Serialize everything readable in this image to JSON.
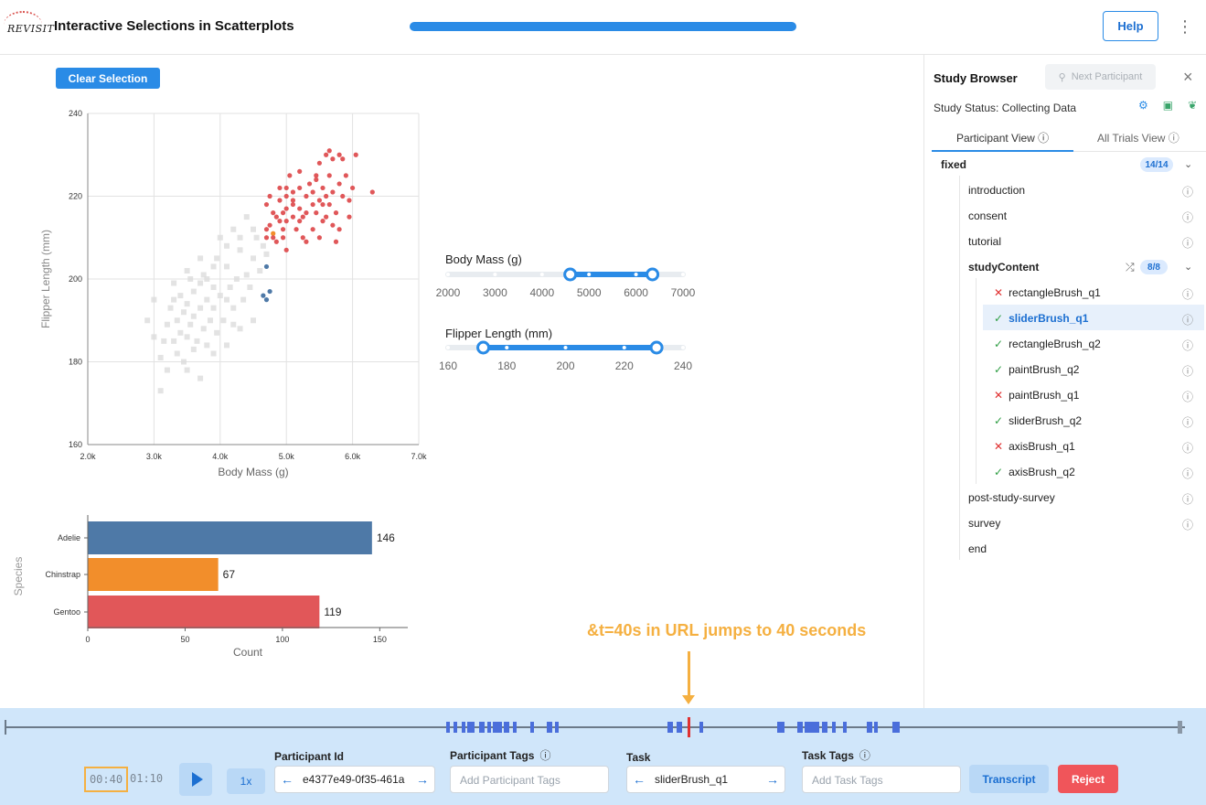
{
  "header": {
    "logo_text": "REVISIT",
    "title": "Interactive Selections in Scatterplots",
    "progress": 1.0,
    "help_label": "Help",
    "menu_icon": "kebab-menu-icon"
  },
  "main": {
    "clear_label": "Clear Selection"
  },
  "chart_data": [
    {
      "type": "scatter",
      "xlabel": "Body Mass (g)",
      "ylabel": "Flipper Length (mm)",
      "x_ticks": [
        "2.0k",
        "3.0k",
        "4.0k",
        "5.0k",
        "6.0k",
        "7.0k"
      ],
      "y_ticks": [
        "160",
        "180",
        "200",
        "220",
        "240"
      ],
      "xlim": [
        2000,
        7000
      ],
      "ylim": [
        160,
        240
      ],
      "grid": true,
      "series": [
        {
          "color": "#e05759",
          "points": [
            [
              4700,
              212
            ],
            [
              4700,
              210
            ],
            [
              4700,
              218
            ],
            [
              4750,
              220
            ],
            [
              4800,
              210
            ],
            [
              4800,
              216
            ],
            [
              4850,
              209
            ],
            [
              4850,
              215
            ],
            [
              4900,
              214
            ],
            [
              4900,
              219
            ],
            [
              4900,
              222
            ],
            [
              4950,
              212
            ],
            [
              4950,
              216
            ],
            [
              5000,
              207
            ],
            [
              5000,
              214
            ],
            [
              5000,
              217
            ],
            [
              5000,
              220
            ],
            [
              5050,
              225
            ],
            [
              5100,
              215
            ],
            [
              5100,
              219
            ],
            [
              5100,
              221
            ],
            [
              5150,
              212
            ],
            [
              5200,
              217
            ],
            [
              5200,
              222
            ],
            [
              5200,
              226
            ],
            [
              5250,
              210
            ],
            [
              5250,
              215
            ],
            [
              5300,
              216
            ],
            [
              5300,
              220
            ],
            [
              5350,
              223
            ],
            [
              5400,
              212
            ],
            [
              5400,
              218
            ],
            [
              5400,
              221
            ],
            [
              5450,
              216
            ],
            [
              5450,
              225
            ],
            [
              5500,
              210
            ],
            [
              5500,
              219
            ],
            [
              5500,
              228
            ],
            [
              5550,
              214
            ],
            [
              5550,
              222
            ],
            [
              5600,
              215
            ],
            [
              5600,
              220
            ],
            [
              5600,
              230
            ],
            [
              5650,
              218
            ],
            [
              5650,
              225
            ],
            [
              5700,
              213
            ],
            [
              5700,
              221
            ],
            [
              5700,
              229
            ],
            [
              5750,
              216
            ],
            [
              5800,
              212
            ],
            [
              5800,
              223
            ],
            [
              5800,
              230
            ],
            [
              5850,
              220
            ],
            [
              5900,
              225
            ],
            [
              5950,
              215
            ],
            [
              6000,
              222
            ],
            [
              6050,
              230
            ],
            [
              5650,
              231
            ],
            [
              5850,
              229
            ],
            [
              6300,
              221
            ],
            [
              5200,
              214
            ],
            [
              5300,
              209
            ],
            [
              5450,
              224
            ],
            [
              5000,
              222
            ],
            [
              5100,
              218
            ],
            [
              4950,
              210
            ],
            [
              4750,
              213
            ],
            [
              5550,
              218
            ],
            [
              5750,
              209
            ],
            [
              5950,
              219
            ]
          ]
        },
        {
          "color": "#4e79a7",
          "points": [
            [
              4700,
              203
            ],
            [
              4650,
              196
            ],
            [
              4700,
              195
            ],
            [
              4750,
              197
            ]
          ]
        },
        {
          "color": "#f28e2b",
          "points": [
            [
              4800,
              211
            ]
          ]
        },
        {
          "color": "#dcdcdc",
          "points": [
            [
              2900,
              190
            ],
            [
              3000,
              186
            ],
            [
              3100,
              181
            ],
            [
              3200,
              189
            ],
            [
              3250,
              193
            ],
            [
              3300,
              195
            ],
            [
              3300,
              185
            ],
            [
              3350,
              190
            ],
            [
              3400,
              187
            ],
            [
              3400,
              196
            ],
            [
              3450,
              180
            ],
            [
              3450,
              192
            ],
            [
              3500,
              186
            ],
            [
              3500,
              194
            ],
            [
              3550,
              189
            ],
            [
              3600,
              191
            ],
            [
              3600,
              197
            ],
            [
              3650,
              185
            ],
            [
              3700,
              193
            ],
            [
              3700,
              199
            ],
            [
              3750,
              188
            ],
            [
              3750,
              201
            ],
            [
              3800,
              184
            ],
            [
              3800,
              195
            ],
            [
              3850,
              190
            ],
            [
              3900,
              193
            ],
            [
              3900,
              198
            ],
            [
              3950,
              187
            ],
            [
              3950,
              205
            ],
            [
              4000,
              196
            ],
            [
              4050,
              190
            ],
            [
              4100,
              203
            ],
            [
              4100,
              195
            ],
            [
              4150,
              198
            ],
            [
              4200,
              193
            ],
            [
              4250,
              200
            ],
            [
              4300,
              207
            ],
            [
              4350,
              195
            ],
            [
              4400,
              201
            ],
            [
              4450,
              198
            ],
            [
              4500,
              205
            ],
            [
              4550,
              210
            ],
            [
              4600,
              202
            ],
            [
              4650,
              208
            ],
            [
              4700,
              206
            ],
            [
              3100,
              173
            ],
            [
              3200,
              178
            ],
            [
              3500,
              178
            ],
            [
              3700,
              176
            ],
            [
              3900,
              182
            ],
            [
              4100,
              184
            ],
            [
              4300,
              188
            ],
            [
              4500,
              190
            ],
            [
              3600,
              183
            ],
            [
              3300,
              199
            ],
            [
              3500,
              202
            ],
            [
              3700,
              205
            ],
            [
              3900,
              203
            ],
            [
              4100,
              208
            ],
            [
              4300,
              210
            ],
            [
              4500,
              212
            ],
            [
              4400,
              215
            ],
            [
              4200,
              212
            ],
            [
              3000,
              195
            ],
            [
              3150,
              185
            ],
            [
              3350,
              182
            ],
            [
              3550,
              200
            ],
            [
              3800,
              200
            ],
            [
              4000,
              210
            ],
            [
              4200,
              189
            ]
          ]
        }
      ]
    },
    {
      "type": "bar",
      "orientation": "horizontal",
      "ylabel": "Species",
      "xlabel": "Count",
      "categories": [
        "Adelie",
        "Chinstrap",
        "Gentoo"
      ],
      "values": [
        146,
        67,
        119
      ],
      "colors": [
        "#4e79a7",
        "#f28e2b",
        "#e15759"
      ],
      "x_ticks": [
        "0",
        "50",
        "100",
        "150"
      ],
      "xlim": [
        0,
        155
      ]
    },
    {
      "type": "range-slider",
      "label": "Body Mass (g)",
      "ticks": [
        "2000",
        "3000",
        "4000",
        "5000",
        "6000",
        "7000"
      ],
      "min": 2000,
      "max": 7000,
      "selection": [
        4600,
        6350
      ]
    },
    {
      "type": "range-slider",
      "label": "Flipper Length (mm)",
      "ticks": [
        "160",
        "180",
        "200",
        "220",
        "240"
      ],
      "min": 160,
      "max": 240,
      "selection": [
        172,
        231
      ]
    }
  ],
  "sidebar": {
    "title": "Study Browser",
    "next_participant": "Next Participant",
    "status": "Study Status: Collecting Data",
    "tabs": [
      "Participant View",
      "All Trials View"
    ],
    "tree": {
      "root": "fixed",
      "root_badge": "14/14",
      "items": [
        "introduction",
        "consent",
        "tutorial"
      ],
      "group": "studyContent",
      "group_badge": "8/8",
      "children": [
        {
          "label": "rectangleBrush_q1",
          "status": "x"
        },
        {
          "label": "sliderBrush_q1",
          "status": "ok"
        },
        {
          "label": "rectangleBrush_q2",
          "status": "ok"
        },
        {
          "label": "paintBrush_q2",
          "status": "ok"
        },
        {
          "label": "paintBrush_q1",
          "status": "x"
        },
        {
          "label": "sliderBrush_q2",
          "status": "ok"
        },
        {
          "label": "axisBrush_q1",
          "status": "x"
        },
        {
          "label": "axisBrush_q2",
          "status": "ok"
        }
      ],
      "after": [
        "post-study-survey",
        "survey",
        "end"
      ]
    }
  },
  "annotation": "&t=40s in URL jumps to 40 seconds",
  "replay": {
    "current_time": "00:40",
    "total_time": "01:10",
    "speed": "1x",
    "participant_id_label": "Participant Id",
    "participant_id": "e4377e49-0f35-461a",
    "participant_tags_label": "Participant Tags",
    "participant_tags_placeholder": "Add Participant Tags",
    "task_label": "Task",
    "task": "sliderBrush_q1",
    "task_tags_label": "Task Tags",
    "task_tags_placeholder": "Add Task Tags",
    "transcript_label": "Transcript",
    "reject_label": "Reject"
  }
}
